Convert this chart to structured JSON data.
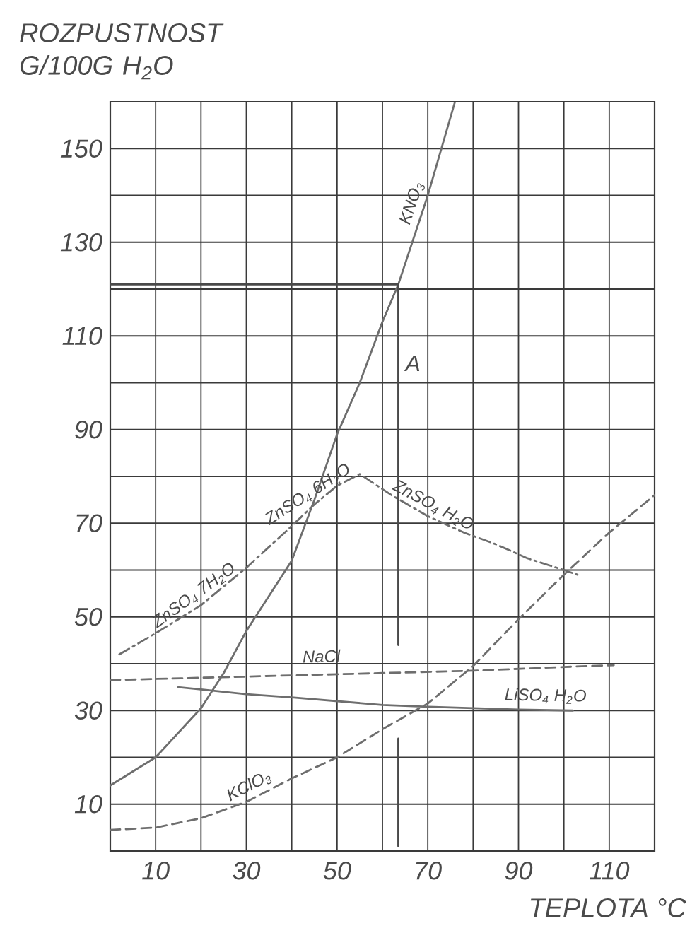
{
  "chart_data": {
    "type": "line",
    "xlabel": "TEPLOTA °C",
    "ylabel": "ROZPUSTNOST G/100G H$_{2}$O",
    "xlim": [
      0,
      120
    ],
    "ylim": [
      0,
      160
    ],
    "xticks": [
      {
        "value": 0,
        "label": null
      },
      10,
      {
        "value": 20,
        "label": null
      },
      30,
      {
        "value": 40,
        "label": null
      },
      50,
      {
        "value": 60,
        "label": null
      },
      70,
      {
        "value": 80,
        "label": null
      },
      90,
      {
        "value": 100,
        "label": null
      },
      110,
      {
        "value": 120,
        "label": null
      }
    ],
    "yticks": [
      {
        "value": 0,
        "label": null
      },
      10,
      {
        "value": 20,
        "label": null
      },
      30,
      {
        "value": 40,
        "label": null
      },
      50,
      {
        "value": 60,
        "label": null
      },
      70,
      {
        "value": 80,
        "label": null
      },
      90,
      {
        "value": 100,
        "label": null
      },
      110,
      {
        "value": 120,
        "label": null
      },
      130,
      {
        "value": 140,
        "label": null
      },
      150,
      {
        "value": 160,
        "label": null
      }
    ],
    "grid": true,
    "series": [
      {
        "name": "KNO$_{3}$",
        "color": "#6e6e6e",
        "line_style": "solid",
        "x": [
          0,
          10,
          20,
          25,
          30,
          35,
          40,
          45,
          50,
          55,
          60,
          63.5,
          70,
          76
        ],
        "values": [
          14,
          20,
          30.5,
          38,
          47,
          54.5,
          62,
          75,
          89,
          100,
          113,
          121,
          140,
          160
        ]
      },
      {
        "color": "#6e6e6e",
        "line_style": "dashdot",
        "x": [
          2,
          10,
          20,
          30,
          39,
          45,
          50,
          55,
          62,
          70,
          78,
          85,
          92,
          100,
          103
        ],
        "values": [
          42,
          46.5,
          52.5,
          60.5,
          68.5,
          74,
          78,
          80.5,
          76,
          71.5,
          68,
          65.5,
          62.5,
          60,
          59
        ]
      },
      {
        "name": "NaCl",
        "color": "#6e6e6e",
        "line_style": "dashed",
        "x": [
          0,
          20,
          40,
          60,
          80,
          100,
          111
        ],
        "values": [
          36.5,
          37,
          37.5,
          38,
          38.5,
          39.3,
          39.7
        ]
      },
      {
        "name": "LiSO$_{4}$ H$_{2}$O",
        "color": "#6e6e6e",
        "line_style": "solid",
        "x": [
          15,
          20,
          30,
          40,
          50,
          60,
          70,
          80,
          90,
          102
        ],
        "values": [
          35,
          34.5,
          33.5,
          32.8,
          32,
          31.2,
          30.8,
          30.5,
          30.2,
          30
        ]
      },
      {
        "name": "KClO$_{3}$",
        "color": "#6e6e6e",
        "line_style": "dashed",
        "x": [
          0,
          10,
          20,
          30,
          40,
          50,
          60,
          70,
          80,
          90,
          100,
          110,
          120
        ],
        "values": [
          4.5,
          5,
          7,
          10.5,
          15.5,
          20,
          26,
          31.5,
          39.5,
          49.5,
          59,
          68,
          76
        ]
      },
      {
        "color": "#4a4a4a",
        "line_style": "solid",
        "x": [
          0,
          63.5,
          63.5,
          null,
          63.5,
          63.5
        ],
        "values": [
          121,
          121,
          44,
          null,
          24,
          1
        ]
      }
    ],
    "annotations": [
      "A",
      {
        "text": "ZnSO$_{4}$ 7H$_{2}$O",
        "x": 20,
        "y": 52.5
      },
      {
        "text": "ZnSO$_{4}$ 6H$_{2}$O",
        "x": 45,
        "y": 74
      },
      {
        "text": "ZnSO$_{4}$ H$_{2}$O",
        "x": 70,
        "y": 71.5
      }
    ]
  }
}
